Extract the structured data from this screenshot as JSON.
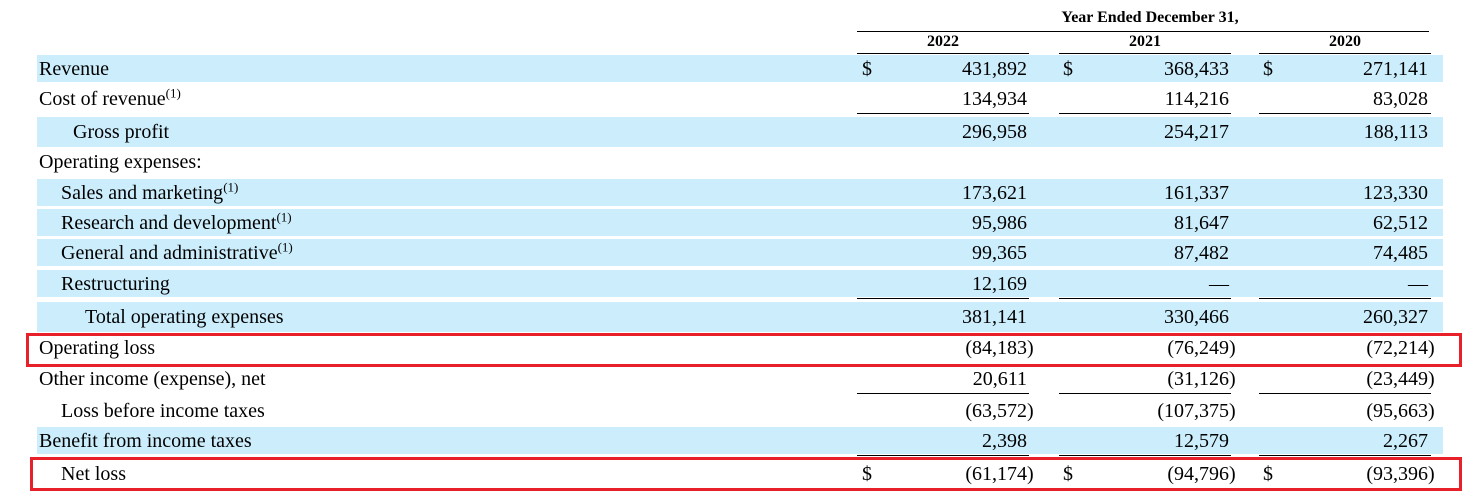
{
  "header": {
    "period_label": "Year Ended December 31,",
    "years": [
      "2022",
      "2021",
      "2020"
    ]
  },
  "currency_symbol": "$",
  "rows": [
    {
      "label": "Revenue",
      "footnote": "",
      "values": [
        "431,892",
        "368,433",
        "271,141"
      ]
    },
    {
      "label": "Cost of revenue",
      "footnote": "(1)",
      "values": [
        "134,934",
        "114,216",
        "83,028"
      ]
    },
    {
      "label": "Gross profit",
      "footnote": "",
      "values": [
        "296,958",
        "254,217",
        "188,113"
      ]
    },
    {
      "label": "Operating expenses:",
      "footnote": "",
      "values": [
        "",
        "",
        ""
      ]
    },
    {
      "label": "Sales and marketing",
      "footnote": "(1)",
      "values": [
        "173,621",
        "161,337",
        "123,330"
      ]
    },
    {
      "label": "Research and development",
      "footnote": "(1)",
      "values": [
        "95,986",
        "81,647",
        "62,512"
      ]
    },
    {
      "label": "General and administrative",
      "footnote": "(1)",
      "values": [
        "99,365",
        "87,482",
        "74,485"
      ]
    },
    {
      "label": "Restructuring",
      "footnote": "",
      "values": [
        "12,169",
        "—",
        "—"
      ]
    },
    {
      "label": "Total operating expenses",
      "footnote": "",
      "values": [
        "381,141",
        "330,466",
        "260,327"
      ]
    },
    {
      "label": "Operating loss",
      "footnote": "",
      "values": [
        "(84,183",
        "(76,249",
        "(72,214"
      ],
      "paren": [
        ")",
        ")",
        ")"
      ]
    },
    {
      "label": "Other income (expense), net",
      "footnote": "",
      "values": [
        "20,611",
        "(31,126",
        "(23,449"
      ],
      "paren": [
        "",
        ")",
        ")"
      ]
    },
    {
      "label": "Loss before income taxes",
      "footnote": "",
      "values": [
        "(63,572",
        "(107,375",
        "(95,663"
      ],
      "paren": [
        ")",
        ")",
        ")"
      ]
    },
    {
      "label": "Benefit from income taxes",
      "footnote": "",
      "values": [
        "2,398",
        "12,579",
        "2,267"
      ]
    },
    {
      "label": "Net loss",
      "footnote": "",
      "values": [
        "(61,174",
        "(94,796",
        "(93,396"
      ],
      "paren": [
        ")",
        ")",
        ")"
      ]
    }
  ],
  "highlight_color": "#e8202a",
  "shade_color": "#cceefc"
}
